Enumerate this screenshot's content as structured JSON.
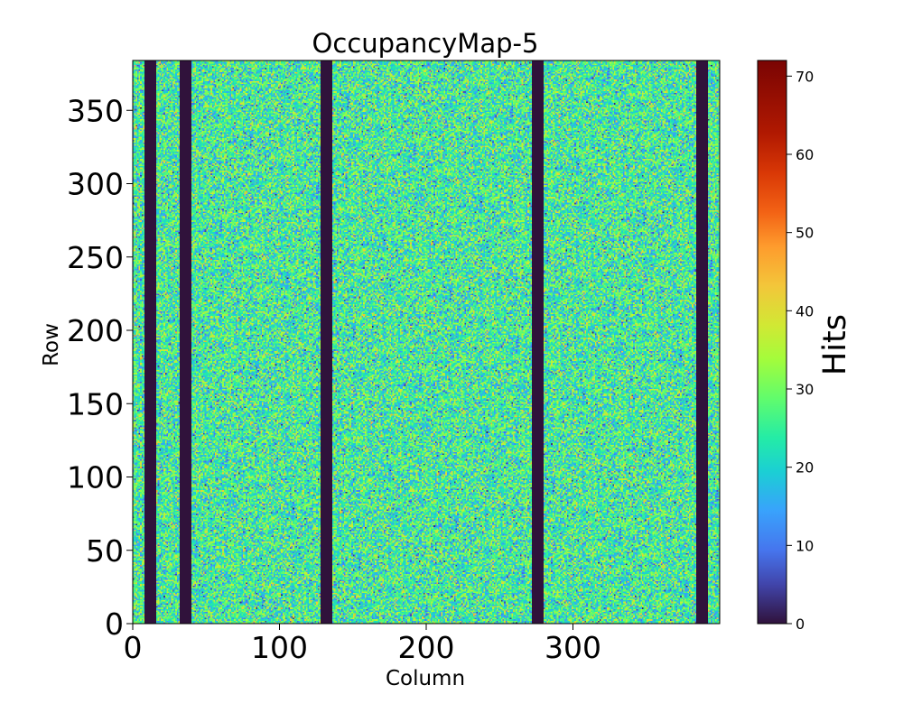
{
  "chart_data": {
    "type": "heatmap",
    "title": "OccupancyMap-5",
    "xlabel": "Column",
    "ylabel": "Row",
    "xlim": [
      0,
      400
    ],
    "ylim": [
      0,
      384
    ],
    "x_ticks": [
      0,
      100,
      200,
      300
    ],
    "y_ticks": [
      0,
      50,
      100,
      150,
      200,
      250,
      300,
      350
    ],
    "colorbar": {
      "label": "Hits",
      "range": [
        0,
        72
      ],
      "ticks": [
        0,
        10,
        20,
        30,
        40,
        50,
        60,
        70
      ],
      "colormap": "turbo"
    },
    "value_distribution": {
      "typical_min": 0,
      "typical_max": 50,
      "mean": 25
    },
    "dead_column_bands": [
      [
        8,
        16
      ],
      [
        32,
        40
      ],
      [
        128,
        136
      ],
      [
        272,
        280
      ],
      [
        384,
        392
      ]
    ],
    "grid": false,
    "legend": "none"
  }
}
